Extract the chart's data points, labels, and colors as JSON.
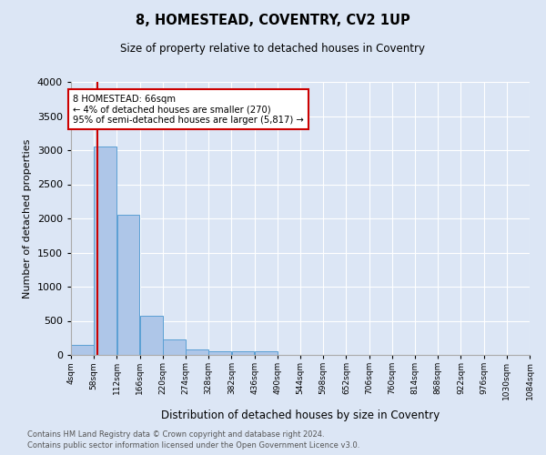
{
  "title": "8, HOMESTEAD, COVENTRY, CV2 1UP",
  "subtitle": "Size of property relative to detached houses in Coventry",
  "xlabel": "Distribution of detached houses by size in Coventry",
  "ylabel": "Number of detached properties",
  "footnote1": "Contains HM Land Registry data © Crown copyright and database right 2024.",
  "footnote2": "Contains public sector information licensed under the Open Government Licence v3.0.",
  "annotation_line1": "8 HOMESTEAD: 66sqm",
  "annotation_line2": "← 4% of detached houses are smaller (270)",
  "annotation_line3": "95% of semi-detached houses are larger (5,817) →",
  "bar_edges": [
    4,
    58,
    112,
    166,
    220,
    274,
    328,
    382,
    436,
    490,
    544,
    598,
    652,
    706,
    760,
    814,
    868,
    922,
    976,
    1030,
    1084
  ],
  "bar_heights": [
    150,
    3050,
    2050,
    575,
    225,
    75,
    50,
    50,
    50,
    0,
    0,
    0,
    0,
    0,
    0,
    0,
    0,
    0,
    0,
    0
  ],
  "bar_color": "#aec6e8",
  "bar_edgecolor": "#5a9fd4",
  "property_x": 66,
  "red_line_color": "#cc0000",
  "annotation_box_color": "#cc0000",
  "ylim": [
    0,
    4000
  ],
  "xlim": [
    4,
    1084
  ],
  "background_color": "#dce6f5",
  "plot_background": "#dce6f5",
  "grid_color": "#ffffff",
  "yticks": [
    0,
    500,
    1000,
    1500,
    2000,
    2500,
    3000,
    3500,
    4000
  ],
  "tick_labels": [
    "4sqm",
    "58sqm",
    "112sqm",
    "166sqm",
    "220sqm",
    "274sqm",
    "328sqm",
    "382sqm",
    "436sqm",
    "490sqm",
    "544sqm",
    "598sqm",
    "652sqm",
    "706sqm",
    "760sqm",
    "814sqm",
    "868sqm",
    "922sqm",
    "976sqm",
    "1030sqm",
    "1084sqm"
  ]
}
